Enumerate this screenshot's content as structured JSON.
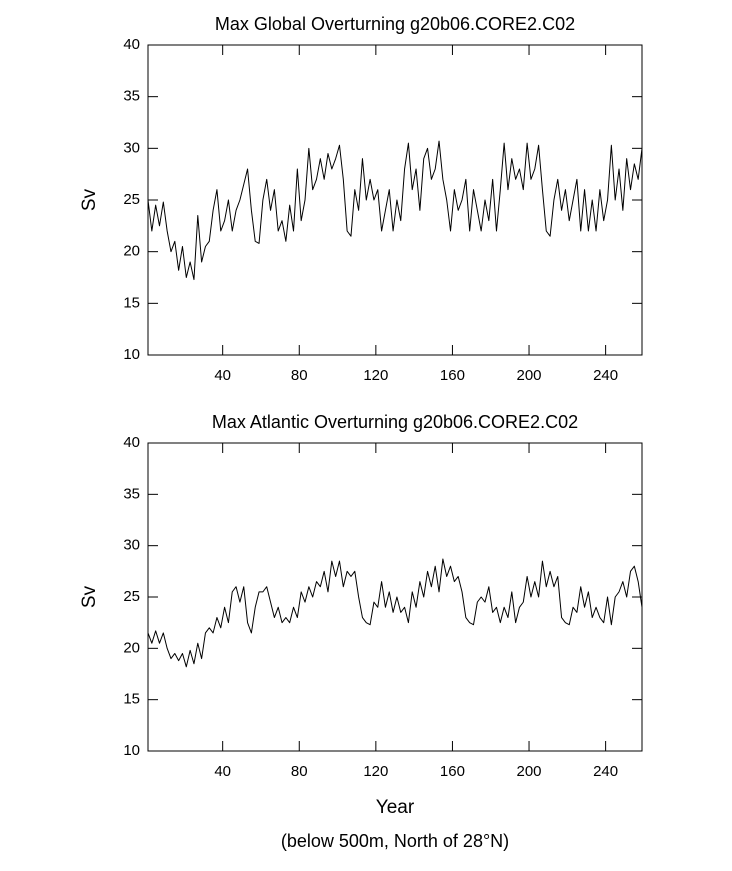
{
  "chart_data": [
    {
      "type": "line",
      "title": "Max Global Overturning g20b06.CORE2.C02",
      "y_label": "Sv",
      "xlim": [
        1,
        259
      ],
      "xticks": [
        40,
        80,
        120,
        160,
        200,
        240
      ],
      "ylim": [
        10,
        40
      ],
      "yticks": [
        10,
        15,
        20,
        25,
        30,
        35,
        40
      ],
      "x": [
        1,
        3,
        5,
        7,
        9,
        11,
        13,
        15,
        17,
        19,
        21,
        23,
        25,
        27,
        29,
        31,
        33,
        35,
        37,
        39,
        41,
        43,
        45,
        47,
        49,
        51,
        53,
        55,
        57,
        59,
        61,
        63,
        65,
        67,
        69,
        71,
        73,
        75,
        77,
        79,
        81,
        83,
        85,
        87,
        89,
        91,
        93,
        95,
        97,
        99,
        101,
        103,
        105,
        107,
        109,
        111,
        113,
        115,
        117,
        119,
        121,
        123,
        125,
        127,
        129,
        131,
        133,
        135,
        137,
        139,
        141,
        143,
        145,
        147,
        149,
        151,
        153,
        155,
        157,
        159,
        161,
        163,
        165,
        167,
        169,
        171,
        173,
        175,
        177,
        179,
        181,
        183,
        185,
        187,
        189,
        191,
        193,
        195,
        197,
        199,
        201,
        203,
        205,
        207,
        209,
        211,
        213,
        215,
        217,
        219,
        221,
        223,
        225,
        227,
        229,
        231,
        233,
        235,
        237,
        239,
        241,
        243,
        245,
        247,
        249,
        251,
        253,
        255,
        257,
        259
      ],
      "series": [
        {
          "color": "#000000",
          "values": [
            25,
            22,
            24.5,
            22.5,
            24.8,
            22,
            20,
            21,
            18.2,
            20.5,
            17.5,
            19,
            17.3,
            23.5,
            19,
            20.5,
            21,
            24,
            26,
            22,
            23,
            25,
            22,
            24,
            25,
            26.5,
            28,
            24,
            21,
            20.8,
            25,
            27,
            24,
            26,
            22,
            23,
            21,
            24.5,
            22,
            28,
            23,
            25,
            30,
            26,
            27,
            29,
            27,
            29.5,
            28,
            29,
            30.3,
            27,
            22,
            21.5,
            26,
            24,
            29,
            25,
            27,
            25,
            26,
            22,
            24,
            26,
            22,
            25,
            23,
            28,
            30.5,
            26,
            28,
            24,
            29,
            30,
            27,
            28,
            30.7,
            27,
            25,
            22,
            26,
            24,
            25,
            27,
            22,
            26,
            24,
            22,
            25,
            23,
            27,
            22,
            26,
            30.5,
            26,
            29,
            27,
            28,
            26,
            30.5,
            27,
            28,
            30.3,
            26,
            22,
            21.5,
            25,
            27,
            24,
            26,
            23,
            25,
            27,
            22,
            26,
            22,
            25,
            22,
            26,
            23,
            25,
            30.3,
            25,
            28,
            24,
            29,
            26,
            28.5,
            27,
            30
          ]
        }
      ]
    },
    {
      "type": "line",
      "title": "Max Atlantic Overturning g20b06.CORE2.C02",
      "y_label": "Sv",
      "x_label": "Year",
      "xlim": [
        1,
        259
      ],
      "xticks": [
        40,
        80,
        120,
        160,
        200,
        240
      ],
      "ylim": [
        10,
        40
      ],
      "yticks": [
        10,
        15,
        20,
        25,
        30,
        35,
        40
      ],
      "x": [
        1,
        3,
        5,
        7,
        9,
        11,
        13,
        15,
        17,
        19,
        21,
        23,
        25,
        27,
        29,
        31,
        33,
        35,
        37,
        39,
        41,
        43,
        45,
        47,
        49,
        51,
        53,
        55,
        57,
        59,
        61,
        63,
        65,
        67,
        69,
        71,
        73,
        75,
        77,
        79,
        81,
        83,
        85,
        87,
        89,
        91,
        93,
        95,
        97,
        99,
        101,
        103,
        105,
        107,
        109,
        111,
        113,
        115,
        117,
        119,
        121,
        123,
        125,
        127,
        129,
        131,
        133,
        135,
        137,
        139,
        141,
        143,
        145,
        147,
        149,
        151,
        153,
        155,
        157,
        159,
        161,
        163,
        165,
        167,
        169,
        171,
        173,
        175,
        177,
        179,
        181,
        183,
        185,
        187,
        189,
        191,
        193,
        195,
        197,
        199,
        201,
        203,
        205,
        207,
        209,
        211,
        213,
        215,
        217,
        219,
        221,
        223,
        225,
        227,
        229,
        231,
        233,
        235,
        237,
        239,
        241,
        243,
        245,
        247,
        249,
        251,
        253,
        255,
        257,
        259
      ],
      "series": [
        {
          "color": "#000000",
          "values": [
            21.5,
            20.5,
            21.7,
            20.5,
            21.5,
            20,
            19,
            19.5,
            18.8,
            19.5,
            18.2,
            19.8,
            18.5,
            20.5,
            19,
            21.5,
            22,
            21.5,
            23,
            22,
            24,
            22.5,
            25.5,
            26,
            24.5,
            26,
            22.5,
            21.5,
            24,
            25.5,
            25.5,
            26,
            24.5,
            23,
            24,
            22.5,
            23,
            22.5,
            24,
            23,
            25.5,
            24.5,
            26,
            25,
            26.5,
            26,
            27.5,
            25.5,
            28.5,
            27,
            28.5,
            26,
            27.5,
            27,
            27.5,
            25,
            23,
            22.5,
            22.3,
            24.5,
            24,
            26.5,
            24,
            25.5,
            23.5,
            25,
            23.5,
            24,
            22.5,
            25.5,
            24,
            26.5,
            25,
            27.5,
            26,
            28,
            25.5,
            28.7,
            27,
            28,
            26.5,
            27,
            25.5,
            23,
            22.5,
            22.3,
            24.5,
            25,
            24.5,
            26,
            23.5,
            24,
            22.5,
            24,
            23,
            25.5,
            22.5,
            24,
            24.5,
            27,
            25,
            26.5,
            25,
            28.5,
            26,
            27.5,
            26,
            27,
            23,
            22.5,
            22.3,
            24,
            23.5,
            26,
            24,
            25.5,
            23,
            24,
            23,
            22.5,
            25,
            22.3,
            25,
            25.5,
            26.5,
            25,
            27.5,
            28,
            26.5,
            24
          ]
        }
      ],
      "subtitle": "(below 500m, North of 28°N)"
    }
  ]
}
